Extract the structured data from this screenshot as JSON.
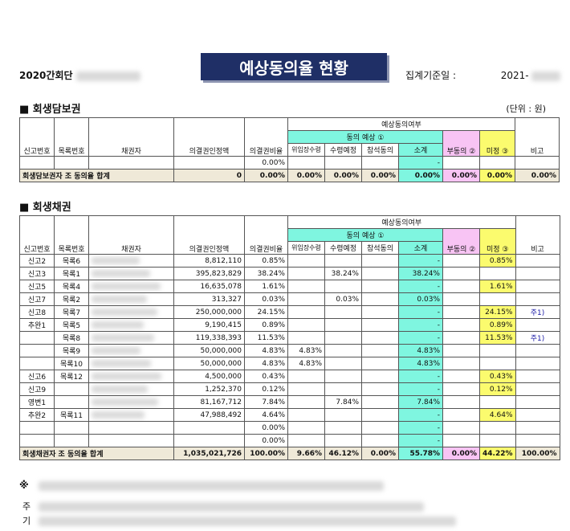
{
  "header": {
    "left_label": "2020간회단",
    "title": "예상동의율 현황",
    "right_label": "집계기준일 :",
    "right_date": "2021-"
  },
  "section1": {
    "title": "■ 회생담보권",
    "unit": "(단위 : 원)",
    "headers": {
      "forecast_group": "예상동의여부",
      "agree_group": "동의 예상 ①",
      "report_no": "신고번호",
      "list_no": "목록번호",
      "creditor": "채권자",
      "amount": "의결권인정액",
      "ratio": "의결권비율",
      "delegate": "위임장수령",
      "plan_receive": "수령예정",
      "attend": "참석동의",
      "subtotal": "소계",
      "disagree": "부동의 ②",
      "undecided": "미정 ③",
      "remark": "비고"
    },
    "empty_row": {
      "ratio": "0.00%",
      "subtotal": "-"
    },
    "sum_row": {
      "label": "회생담보권자 조 동의율 합계",
      "amount": "0",
      "ratio": "0.00%",
      "delegate": "0.00%",
      "plan_receive": "0.00%",
      "attend": "0.00%",
      "subtotal": "0.00%",
      "disagree": "0.00%",
      "undecided": "0.00%",
      "remark": "0.00%"
    }
  },
  "section2": {
    "title": "■ 회생채권",
    "rows": [
      {
        "report": "신고2",
        "list": "목록6",
        "amount": "8,812,110",
        "ratio": "0.85%",
        "delegate": "",
        "plan": "",
        "attend": "",
        "subtotal": "-",
        "disagree": "",
        "undecided": "0.85%",
        "remark": ""
      },
      {
        "report": "신고3",
        "list": "목록1",
        "amount": "395,823,829",
        "ratio": "38.24%",
        "delegate": "",
        "plan": "38.24%",
        "attend": "",
        "subtotal": "38.24%",
        "disagree": "",
        "undecided": "",
        "remark": ""
      },
      {
        "report": "신고5",
        "list": "목록4",
        "amount": "16,635,078",
        "ratio": "1.61%",
        "delegate": "",
        "plan": "",
        "attend": "",
        "subtotal": "-",
        "disagree": "",
        "undecided": "1.61%",
        "remark": ""
      },
      {
        "report": "신고7",
        "list": "목록2",
        "amount": "313,327",
        "ratio": "0.03%",
        "delegate": "",
        "plan": "0.03%",
        "attend": "",
        "subtotal": "0.03%",
        "disagree": "",
        "undecided": "",
        "remark": ""
      },
      {
        "report": "신고8",
        "list": "목록7",
        "amount": "250,000,000",
        "ratio": "24.15%",
        "delegate": "",
        "plan": "",
        "attend": "",
        "subtotal": "-",
        "disagree": "",
        "undecided": "24.15%",
        "remark": "주1)"
      },
      {
        "report": "추완1",
        "list": "목록5",
        "amount": "9,190,415",
        "ratio": "0.89%",
        "delegate": "",
        "plan": "",
        "attend": "",
        "subtotal": "-",
        "disagree": "",
        "undecided": "0.89%",
        "remark": ""
      },
      {
        "report": "",
        "list": "목록8",
        "amount": "119,338,393",
        "ratio": "11.53%",
        "delegate": "",
        "plan": "",
        "attend": "",
        "subtotal": "-",
        "disagree": "",
        "undecided": "11.53%",
        "remark": "주1)"
      },
      {
        "report": "",
        "list": "목록9",
        "amount": "50,000,000",
        "ratio": "4.83%",
        "delegate": "4.83%",
        "plan": "",
        "attend": "",
        "subtotal": "4.83%",
        "disagree": "",
        "undecided": "",
        "remark": ""
      },
      {
        "report": "",
        "list": "목록10",
        "amount": "50,000,000",
        "ratio": "4.83%",
        "delegate": "4.83%",
        "plan": "",
        "attend": "",
        "subtotal": "4.83%",
        "disagree": "",
        "undecided": "",
        "remark": ""
      },
      {
        "report": "신고6",
        "list": "목록12",
        "amount": "4,500,000",
        "ratio": "0.43%",
        "delegate": "",
        "plan": "",
        "attend": "",
        "subtotal": "-",
        "disagree": "",
        "undecided": "0.43%",
        "remark": ""
      },
      {
        "report": "신고9",
        "list": "",
        "amount": "1,252,370",
        "ratio": "0.12%",
        "delegate": "",
        "plan": "",
        "attend": "",
        "subtotal": "-",
        "disagree": "",
        "undecided": "0.12%",
        "remark": ""
      },
      {
        "report": "영변1",
        "list": "",
        "amount": "81,167,712",
        "ratio": "7.84%",
        "delegate": "",
        "plan": "7.84%",
        "attend": "",
        "subtotal": "7.84%",
        "disagree": "",
        "undecided": "",
        "remark": ""
      },
      {
        "report": "추완2",
        "list": "목록11",
        "amount": "47,988,492",
        "ratio": "4.64%",
        "delegate": "",
        "plan": "",
        "attend": "",
        "subtotal": "-",
        "disagree": "",
        "undecided": "4.64%",
        "remark": ""
      },
      {
        "report": "",
        "list": "",
        "amount": "",
        "ratio": "0.00%",
        "delegate": "",
        "plan": "",
        "attend": "",
        "subtotal": "-",
        "disagree": "",
        "undecided": "",
        "remark": ""
      },
      {
        "report": "",
        "list": "",
        "amount": "",
        "ratio": "0.00%",
        "delegate": "",
        "plan": "",
        "attend": "",
        "subtotal": "-",
        "disagree": "",
        "undecided": "",
        "remark": ""
      }
    ],
    "sum_row": {
      "label": "회생채권자 조 동의율 합계",
      "amount": "1,035,021,726",
      "ratio": "100.00%",
      "delegate": "9.66%",
      "plan_receive": "46.12%",
      "attend": "0.00%",
      "subtotal": "55.78%",
      "disagree": "0.00%",
      "undecided": "44.22%",
      "remark": "100.00%"
    }
  },
  "footer": {
    "mark": "※",
    "line1_prefix": "주",
    "line2_prefix": "기"
  },
  "colors": {
    "title_bg": "#1f2f66",
    "agree": "#7ff6e0",
    "disagree": "#f8c4f4",
    "undecided": "#fbfb6e",
    "sum_bg": "#efe9d8"
  }
}
